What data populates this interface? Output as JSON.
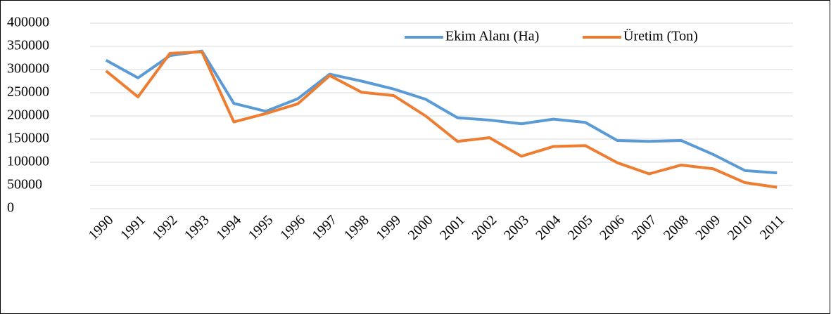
{
  "chart_data": {
    "type": "line",
    "x": [
      "1990",
      "1991",
      "1992",
      "1993",
      "1994",
      "1995",
      "1996",
      "1997",
      "1998",
      "1999",
      "2000",
      "2001",
      "2002",
      "2003",
      "2004",
      "2005",
      "2006",
      "2007",
      "2008",
      "2009",
      "2010",
      "2011"
    ],
    "series": [
      {
        "name": "Ekim Alanı (Ha)",
        "color": "#5b9bd5",
        "values": [
          320000,
          282000,
          330000,
          340000,
          227000,
          210000,
          237000,
          290000,
          275000,
          258000,
          236000,
          196000,
          191000,
          183000,
          193000,
          186000,
          147000,
          145000,
          147000,
          117000,
          82000,
          77000
        ]
      },
      {
        "name": "Üretim (Ton)",
        "color": "#ed7d31",
        "values": [
          297000,
          241000,
          335000,
          338000,
          187000,
          205000,
          226000,
          287000,
          251000,
          244000,
          200000,
          145000,
          153000,
          113000,
          134000,
          136000,
          99000,
          75000,
          94000,
          86000,
          56000,
          46000
        ]
      }
    ],
    "ylim": [
      0,
      400000
    ],
    "yticks": [
      0,
      50000,
      100000,
      150000,
      200000,
      250000,
      300000,
      350000,
      400000
    ],
    "grid": true,
    "legend": "top"
  }
}
